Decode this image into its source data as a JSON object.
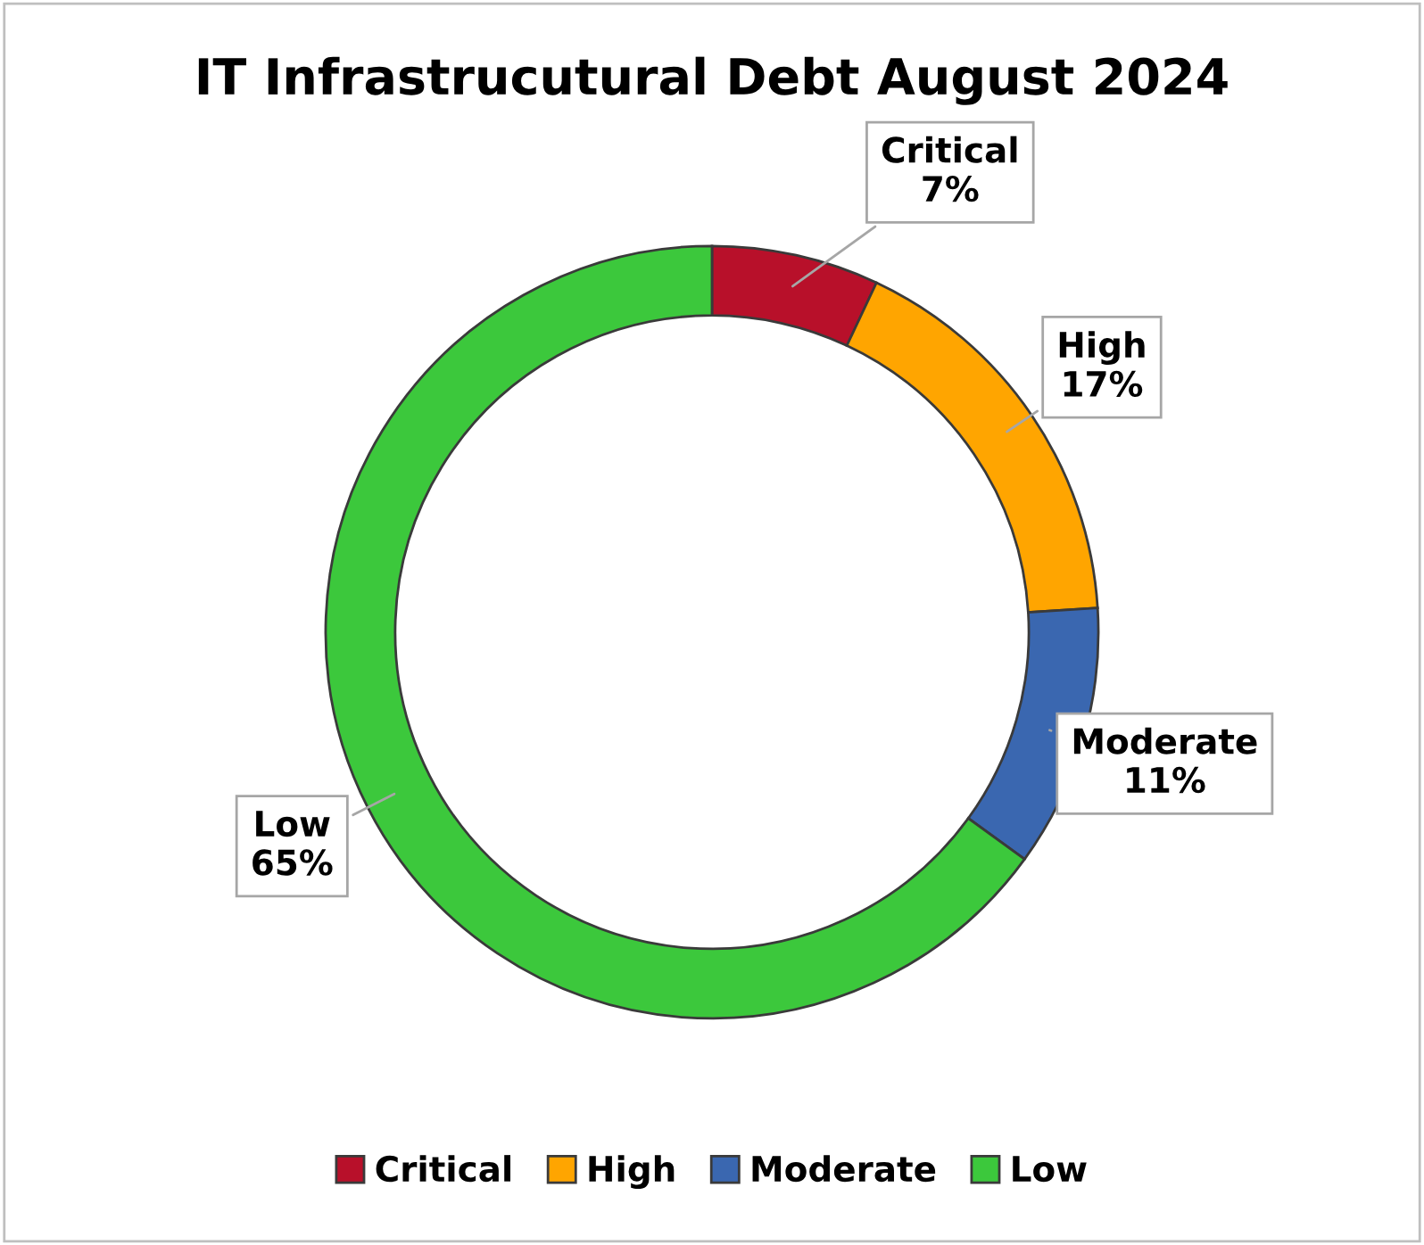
{
  "chart_data": {
    "type": "donut",
    "title": "IT Infrastrucutural Debt August 2024",
    "categories": [
      "Critical",
      "High",
      "Moderate",
      "Low"
    ],
    "values": [
      7,
      17,
      11,
      65
    ],
    "colors": [
      "#b8102a",
      "#ffa500",
      "#3a67b0",
      "#3cc83c"
    ],
    "value_labels": [
      "Critical\n7%",
      "High\n17%",
      "Moderate\n11%",
      "Low\n65%"
    ],
    "legend": "bottom"
  }
}
